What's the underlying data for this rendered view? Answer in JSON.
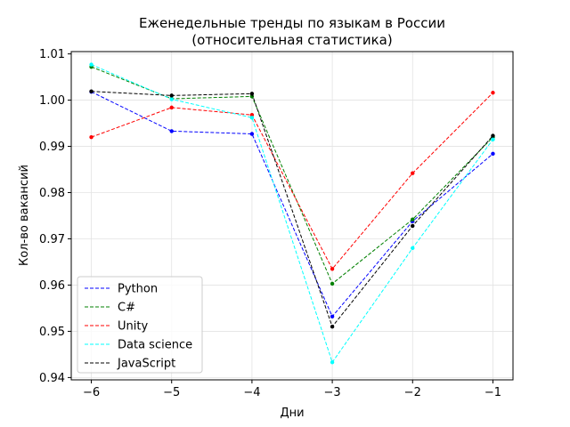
{
  "chart_data": {
    "type": "line",
    "title": "Еженедельные тренды по языкам в России",
    "subtitle": "(относительная статистика)",
    "xlabel": "Дни",
    "ylabel": "Кол-во вакансий",
    "x": [
      -6,
      -5,
      -4,
      -3,
      -2,
      -1
    ],
    "xticks": [
      "−6",
      "−5",
      "−4",
      "−3",
      "−2",
      "−1"
    ],
    "yticks": [
      "0.94",
      "0.95",
      "0.96",
      "0.97",
      "0.98",
      "0.99",
      "1.00",
      "1.01"
    ],
    "ylim": [
      0.9395,
      1.0105
    ],
    "xlim": [
      -6.25,
      -0.75
    ],
    "grid": true,
    "legend_position": "lower-left",
    "series": [
      {
        "name": "Python",
        "color": "#0000ff",
        "values": [
          1.0018,
          0.9933,
          0.9927,
          0.9532,
          0.9738,
          0.9884
        ]
      },
      {
        "name": "C#",
        "color": "#008000",
        "values": [
          1.0072,
          1.0003,
          1.0008,
          0.9603,
          0.9742,
          0.992
        ]
      },
      {
        "name": "Unity",
        "color": "#ff0000",
        "values": [
          0.992,
          0.9984,
          0.9968,
          0.9635,
          0.9842,
          1.0016
        ]
      },
      {
        "name": "Data science",
        "color": "#00ffff",
        "values": [
          1.0077,
          1.0002,
          0.9962,
          0.9433,
          0.968,
          0.9915
        ]
      },
      {
        "name": "JavaScript",
        "color": "#000000",
        "values": [
          1.0019,
          1.001,
          1.0014,
          0.951,
          0.9728,
          0.9923
        ]
      }
    ]
  }
}
